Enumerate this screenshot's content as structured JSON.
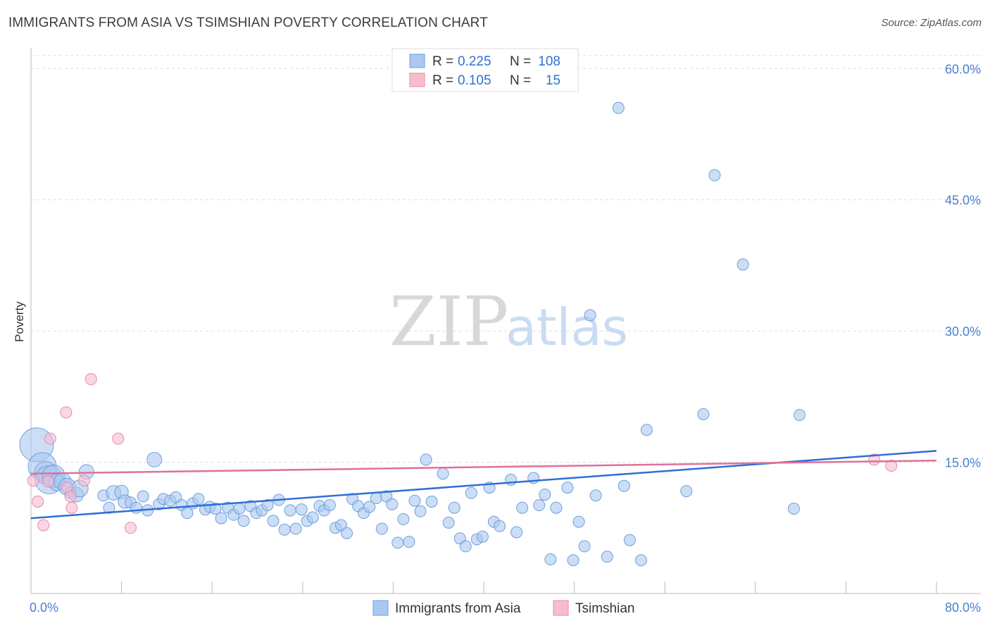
{
  "title": "IMMIGRANTS FROM ASIA VS TSIMSHIAN POVERTY CORRELATION CHART",
  "source": "Source: ZipAtlas.com",
  "watermark": {
    "zip": "ZIP",
    "atlas": "atlas"
  },
  "legend": {
    "series1": {
      "r_label": "R =",
      "r_value": "0.225",
      "n_label": "N =",
      "n_value": "108"
    },
    "series2": {
      "r_label": "R =",
      "r_value": "0.105",
      "n_label": "N =",
      "n_value": "15"
    }
  },
  "bottom_legend": {
    "series1": "Immigrants from Asia",
    "series2": "Tsimshian"
  },
  "colors": {
    "asia_fill": "#aac8f0",
    "asia_stroke": "#6f9fdc",
    "asia_line": "#2f6fd6",
    "tsim_fill": "#f7bcd0",
    "tsim_stroke": "#e88aa9",
    "tsim_line": "#e0709a",
    "axis_text": "#4a7fd0",
    "grid": "#dddddd"
  },
  "chart_data": {
    "type": "scatter",
    "title": "IMMIGRANTS FROM ASIA VS TSIMSHIAN POVERTY CORRELATION CHART",
    "xlabel": "",
    "ylabel": "Poverty",
    "xlim": [
      0,
      80
    ],
    "ylim": [
      0,
      63
    ],
    "x_tick_labels": [
      "0.0%",
      "80.0%"
    ],
    "y_ticks": [
      15,
      30,
      45,
      60
    ],
    "y_tick_labels": [
      "15.0%",
      "30.0%",
      "45.0%",
      "60.0%"
    ],
    "grid": true,
    "series": [
      {
        "name": "Immigrants from Asia",
        "r": 0.225,
        "n": 108,
        "trend": {
          "x": [
            0,
            80
          ],
          "y": [
            8.6,
            16.3
          ]
        },
        "points": [
          {
            "x": 0.5,
            "y": 17.0,
            "s": 3
          },
          {
            "x": 1.0,
            "y": 14.5,
            "s": 2.5
          },
          {
            "x": 1.3,
            "y": 13.8,
            "s": 2
          },
          {
            "x": 1.6,
            "y": 13.0,
            "s": 2.5
          },
          {
            "x": 2.0,
            "y": 13.4,
            "s": 2
          },
          {
            "x": 2.3,
            "y": 12.7,
            "s": 1.5
          },
          {
            "x": 2.8,
            "y": 12.8,
            "s": 1.5
          },
          {
            "x": 3.2,
            "y": 12.2,
            "s": 1.5
          },
          {
            "x": 3.5,
            "y": 11.5,
            "s": 1
          },
          {
            "x": 4.0,
            "y": 11.3,
            "s": 1.3
          },
          {
            "x": 4.3,
            "y": 12.0,
            "s": 1.5
          },
          {
            "x": 4.9,
            "y": 13.9,
            "s": 1.3
          },
          {
            "x": 6.4,
            "y": 11.2,
            "s": 1
          },
          {
            "x": 6.9,
            "y": 9.8,
            "s": 1
          },
          {
            "x": 7.3,
            "y": 11.5,
            "s": 1.3
          },
          {
            "x": 8.0,
            "y": 11.6,
            "s": 1.2
          },
          {
            "x": 8.3,
            "y": 10.5,
            "s": 1.2
          },
          {
            "x": 8.8,
            "y": 10.4,
            "s": 1
          },
          {
            "x": 9.3,
            "y": 9.8,
            "s": 1
          },
          {
            "x": 9.9,
            "y": 11.1,
            "s": 1
          },
          {
            "x": 10.3,
            "y": 9.5,
            "s": 1
          },
          {
            "x": 10.9,
            "y": 15.3,
            "s": 1.3
          },
          {
            "x": 11.3,
            "y": 10.2,
            "s": 1
          },
          {
            "x": 11.7,
            "y": 10.8,
            "s": 1
          },
          {
            "x": 12.3,
            "y": 10.6,
            "s": 1
          },
          {
            "x": 12.8,
            "y": 11.0,
            "s": 1
          },
          {
            "x": 13.3,
            "y": 10.1,
            "s": 1
          },
          {
            "x": 13.8,
            "y": 9.2,
            "s": 1
          },
          {
            "x": 14.3,
            "y": 10.3,
            "s": 1
          },
          {
            "x": 14.8,
            "y": 10.8,
            "s": 1
          },
          {
            "x": 15.4,
            "y": 9.6,
            "s": 1
          },
          {
            "x": 15.8,
            "y": 9.9,
            "s": 1
          },
          {
            "x": 16.3,
            "y": 9.7,
            "s": 1
          },
          {
            "x": 16.8,
            "y": 8.6,
            "s": 1
          },
          {
            "x": 17.4,
            "y": 9.8,
            "s": 1
          },
          {
            "x": 17.9,
            "y": 9.0,
            "s": 1
          },
          {
            "x": 18.4,
            "y": 9.7,
            "s": 1
          },
          {
            "x": 18.8,
            "y": 8.3,
            "s": 1
          },
          {
            "x": 19.4,
            "y": 10.0,
            "s": 1
          },
          {
            "x": 19.9,
            "y": 9.2,
            "s": 1
          },
          {
            "x": 20.4,
            "y": 9.5,
            "s": 1
          },
          {
            "x": 20.9,
            "y": 10.1,
            "s": 1
          },
          {
            "x": 21.4,
            "y": 8.3,
            "s": 1
          },
          {
            "x": 21.9,
            "y": 10.7,
            "s": 1
          },
          {
            "x": 22.4,
            "y": 7.3,
            "s": 1
          },
          {
            "x": 22.9,
            "y": 9.5,
            "s": 1
          },
          {
            "x": 23.4,
            "y": 7.4,
            "s": 1
          },
          {
            "x": 23.9,
            "y": 9.6,
            "s": 1
          },
          {
            "x": 24.4,
            "y": 8.3,
            "s": 1
          },
          {
            "x": 24.9,
            "y": 8.7,
            "s": 1
          },
          {
            "x": 25.5,
            "y": 10.0,
            "s": 1
          },
          {
            "x": 25.9,
            "y": 9.5,
            "s": 1
          },
          {
            "x": 26.4,
            "y": 10.1,
            "s": 1
          },
          {
            "x": 26.9,
            "y": 7.5,
            "s": 1
          },
          {
            "x": 27.4,
            "y": 7.8,
            "s": 1
          },
          {
            "x": 27.9,
            "y": 6.9,
            "s": 1
          },
          {
            "x": 28.4,
            "y": 10.8,
            "s": 1
          },
          {
            "x": 28.9,
            "y": 10.0,
            "s": 1
          },
          {
            "x": 29.4,
            "y": 9.2,
            "s": 1
          },
          {
            "x": 29.9,
            "y": 9.9,
            "s": 1
          },
          {
            "x": 30.5,
            "y": 10.9,
            "s": 1
          },
          {
            "x": 31.0,
            "y": 7.4,
            "s": 1
          },
          {
            "x": 31.4,
            "y": 11.1,
            "s": 1
          },
          {
            "x": 31.9,
            "y": 10.2,
            "s": 1
          },
          {
            "x": 32.4,
            "y": 5.8,
            "s": 1
          },
          {
            "x": 32.9,
            "y": 8.5,
            "s": 1
          },
          {
            "x": 33.4,
            "y": 5.9,
            "s": 1
          },
          {
            "x": 33.9,
            "y": 10.6,
            "s": 1
          },
          {
            "x": 34.4,
            "y": 9.4,
            "s": 1
          },
          {
            "x": 34.9,
            "y": 15.3,
            "s": 1
          },
          {
            "x": 35.4,
            "y": 10.5,
            "s": 1
          },
          {
            "x": 36.4,
            "y": 13.7,
            "s": 1
          },
          {
            "x": 36.9,
            "y": 8.1,
            "s": 1
          },
          {
            "x": 37.4,
            "y": 9.8,
            "s": 1
          },
          {
            "x": 37.9,
            "y": 6.3,
            "s": 1
          },
          {
            "x": 38.4,
            "y": 5.4,
            "s": 1
          },
          {
            "x": 38.9,
            "y": 11.5,
            "s": 1
          },
          {
            "x": 39.4,
            "y": 6.2,
            "s": 1
          },
          {
            "x": 39.9,
            "y": 6.5,
            "s": 1
          },
          {
            "x": 40.5,
            "y": 12.1,
            "s": 1
          },
          {
            "x": 40.9,
            "y": 8.2,
            "s": 1
          },
          {
            "x": 41.4,
            "y": 7.7,
            "s": 1
          },
          {
            "x": 42.4,
            "y": 13.0,
            "s": 1
          },
          {
            "x": 42.9,
            "y": 7.0,
            "s": 1
          },
          {
            "x": 43.4,
            "y": 9.8,
            "s": 1
          },
          {
            "x": 44.4,
            "y": 13.2,
            "s": 1
          },
          {
            "x": 44.9,
            "y": 10.1,
            "s": 1
          },
          {
            "x": 45.4,
            "y": 11.3,
            "s": 1
          },
          {
            "x": 45.9,
            "y": 3.9,
            "s": 1
          },
          {
            "x": 46.4,
            "y": 9.8,
            "s": 1
          },
          {
            "x": 47.4,
            "y": 12.1,
            "s": 1
          },
          {
            "x": 47.9,
            "y": 3.8,
            "s": 1
          },
          {
            "x": 48.4,
            "y": 8.2,
            "s": 1
          },
          {
            "x": 48.9,
            "y": 5.4,
            "s": 1
          },
          {
            "x": 49.4,
            "y": 31.8,
            "s": 1
          },
          {
            "x": 49.9,
            "y": 11.2,
            "s": 1
          },
          {
            "x": 50.9,
            "y": 4.2,
            "s": 1
          },
          {
            "x": 51.9,
            "y": 55.5,
            "s": 1
          },
          {
            "x": 52.4,
            "y": 12.3,
            "s": 1
          },
          {
            "x": 52.9,
            "y": 6.1,
            "s": 1
          },
          {
            "x": 53.9,
            "y": 3.8,
            "s": 1
          },
          {
            "x": 54.4,
            "y": 18.7,
            "s": 1
          },
          {
            "x": 57.9,
            "y": 11.7,
            "s": 1
          },
          {
            "x": 59.4,
            "y": 20.5,
            "s": 1
          },
          {
            "x": 60.4,
            "y": 47.8,
            "s": 1
          },
          {
            "x": 62.9,
            "y": 37.6,
            "s": 1
          },
          {
            "x": 67.4,
            "y": 9.7,
            "s": 1
          },
          {
            "x": 67.9,
            "y": 20.4,
            "s": 1
          }
        ]
      },
      {
        "name": "Tsimshian",
        "r": 0.105,
        "n": 15,
        "trend": {
          "x": [
            0,
            80
          ],
          "y": [
            13.7,
            15.2
          ]
        },
        "points": [
          {
            "x": 0.2,
            "y": 12.9,
            "s": 1
          },
          {
            "x": 0.6,
            "y": 10.5,
            "s": 1
          },
          {
            "x": 1.1,
            "y": 7.8,
            "s": 1
          },
          {
            "x": 1.5,
            "y": 12.8,
            "s": 1
          },
          {
            "x": 1.7,
            "y": 17.7,
            "s": 1
          },
          {
            "x": 3.1,
            "y": 20.7,
            "s": 1
          },
          {
            "x": 3.2,
            "y": 12.1,
            "s": 1
          },
          {
            "x": 3.5,
            "y": 11.1,
            "s": 1
          },
          {
            "x": 3.6,
            "y": 9.8,
            "s": 1
          },
          {
            "x": 4.7,
            "y": 12.9,
            "s": 1
          },
          {
            "x": 5.3,
            "y": 24.5,
            "s": 1
          },
          {
            "x": 7.7,
            "y": 17.7,
            "s": 1
          },
          {
            "x": 8.8,
            "y": 7.5,
            "s": 1
          },
          {
            "x": 74.5,
            "y": 15.3,
            "s": 1
          },
          {
            "x": 76.0,
            "y": 14.6,
            "s": 1
          }
        ]
      }
    ]
  }
}
